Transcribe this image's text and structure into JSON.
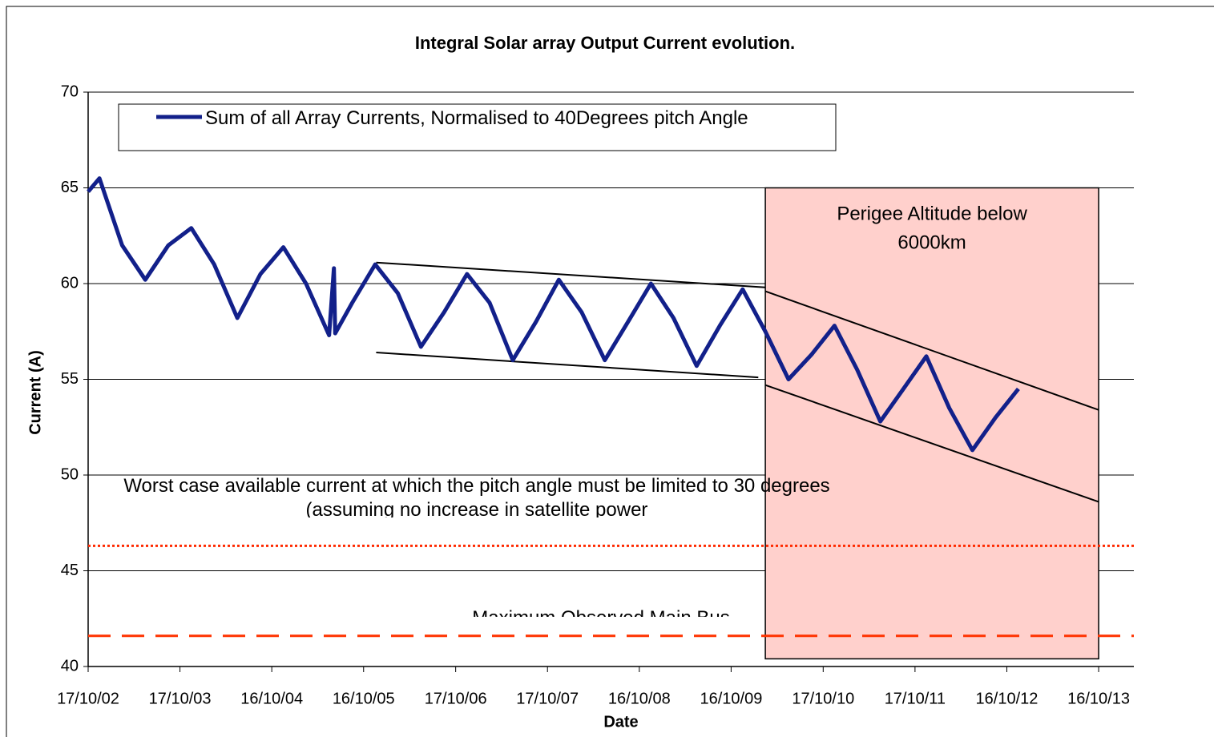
{
  "chart_data": {
    "type": "line",
    "title": "Integral Solar array Output Current evolution.",
    "x_label": "Date",
    "y_label": "Current (A)",
    "xlim": [
      "17/10/02",
      "05/03/14"
    ],
    "xticks": [
      "17/10/02",
      "17/10/03",
      "16/10/04",
      "16/10/05",
      "17/10/06",
      "17/10/07",
      "16/10/08",
      "16/10/09",
      "17/10/10",
      "17/10/11",
      "16/10/12",
      "16/10/13"
    ],
    "ylim": [
      40,
      70
    ],
    "yticks": [
      40,
      45,
      50,
      55,
      60,
      65,
      70
    ],
    "grid": true,
    "x": [
      "17/10/02",
      "01/12/02",
      "01/03/03",
      "01/06/03",
      "01/09/03",
      "01/12/03",
      "01/03/04",
      "01/06/04",
      "01/09/04",
      "01/12/04",
      "01/03/05",
      "01/06/05",
      "20/06/05",
      "25/06/05",
      "01/09/05",
      "01/12/05",
      "01/03/06",
      "01/06/06",
      "01/09/06",
      "01/12/06",
      "01/03/07",
      "01/06/07",
      "01/09/07",
      "01/12/07",
      "01/03/08",
      "01/06/08",
      "01/09/08",
      "01/12/08",
      "01/03/09",
      "01/06/09",
      "01/09/09",
      "01/12/09",
      "01/03/10",
      "01/06/10",
      "01/09/10",
      "01/12/10",
      "01/03/11",
      "01/06/11",
      "01/09/11",
      "01/12/11",
      "01/03/12",
      "01/06/12",
      "01/09/12",
      "01/12/12"
    ],
    "series": [
      {
        "name": "Sum of all Array Currents, Normalised to 40Degrees pitch Angle",
        "color": "#12208a",
        "values": [
          64.8,
          65.5,
          62,
          60.2,
          62,
          62.9,
          61,
          58.2,
          60.5,
          61.9,
          60,
          57.3,
          60.8,
          57.4,
          59,
          61,
          59.5,
          56.7,
          58.5,
          60.5,
          59,
          56,
          58,
          60.2,
          58.5,
          56,
          58,
          60,
          58.2,
          55.7,
          57.8,
          59.7,
          57.5,
          55,
          56.3,
          57.8,
          55.5,
          52.8,
          54.5,
          56.2,
          53.5,
          51.3,
          53,
          54.5
        ]
      }
    ],
    "trend_lines": [
      {
        "x": [
          "05/12/05",
          "01/03/10"
        ],
        "values": [
          61.1,
          59.8
        ]
      },
      {
        "x": [
          "05/12/05",
          "01/02/10"
        ],
        "values": [
          56.4,
          55.1
        ]
      },
      {
        "x": [
          "01/03/10",
          "16/10/13"
        ],
        "values": [
          59.6,
          53.4
        ]
      },
      {
        "x": [
          "01/03/10",
          "16/10/13"
        ],
        "values": [
          54.7,
          48.6
        ]
      }
    ],
    "shaded_region": {
      "label": [
        "Perigee Altitude below",
        "6000km"
      ],
      "x": [
        "01/03/10",
        "16/10/13"
      ],
      "values": [
        65,
        40.4
      ],
      "color": "#ffd0cc"
    },
    "reference_lines": [
      {
        "value": 46.3,
        "style": "dotted",
        "color": "#ff2a00",
        "text": "Worst case available current at which the pitch angle must be limited to 30 degrees (assuming no increase in satellite power"
      },
      {
        "value": 41.6,
        "style": "dashed",
        "color": "#ff3300",
        "text": "Maximum Observed Main Bus"
      }
    ]
  }
}
